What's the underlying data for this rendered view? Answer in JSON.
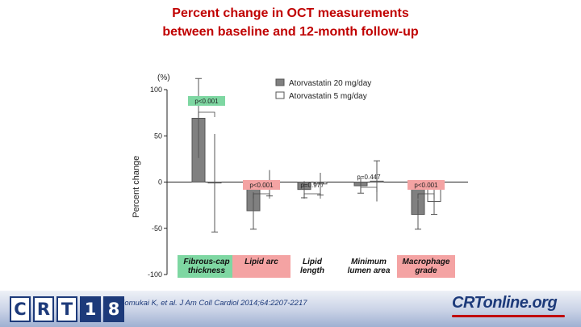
{
  "title": {
    "line1": "Percent change in OCT measurements",
    "line2": "between baseline and 12-month follow-up"
  },
  "chart_data": {
    "type": "bar",
    "ylabel": "Percent change",
    "yunit": "(%)",
    "ylim": [
      -100,
      100
    ],
    "yticks": [
      100,
      50,
      0,
      -50,
      -100
    ],
    "tick_labels": [
      "100",
      "50",
      "0",
      "-50",
      "-100"
    ],
    "categories": [
      {
        "label_lines": [
          "Fibrous-cap",
          "thickness"
        ],
        "bg": "#7ed7a2"
      },
      {
        "label_lines": [
          "Lipid arc"
        ],
        "bg": "#f4a3a3"
      },
      {
        "label_lines": [
          "Lipid",
          "length"
        ],
        "bg": ""
      },
      {
        "label_lines": [
          "Minimum",
          "lumen area"
        ],
        "bg": ""
      },
      {
        "label_lines": [
          "Macrophage",
          "grade"
        ],
        "bg": "#f4a3a3"
      }
    ],
    "series": [
      {
        "name": "Atorvastatin 20 mg/day",
        "color": "#808080",
        "values": [
          69,
          -31,
          -8,
          -4,
          -35
        ],
        "err_hi": [
          43,
          20,
          9,
          8,
          16
        ]
      },
      {
        "name": "Atorvastatin 5 mg/day",
        "color": "#ffffff",
        "values": [
          -1,
          -1,
          -2,
          1,
          -21
        ],
        "err_hi": [
          53,
          14,
          12,
          22,
          14
        ]
      }
    ],
    "pvalues": [
      {
        "text": "p<0.001",
        "bg": "#7ed7a2"
      },
      {
        "text": "p<0.001",
        "bg": "#f4a3a3"
      },
      {
        "text": "p=0.977",
        "bg": ""
      },
      {
        "text": "p=0.447",
        "bg": ""
      },
      {
        "text": "p<0.001",
        "bg": "#f4a3a3"
      }
    ],
    "legend_position": "top-right"
  },
  "footer": {
    "logo_letters": [
      "C",
      "R",
      "T",
      "1",
      "8"
    ],
    "citation": "Komukai K, et al. J Am Coll Cardiol 2014;64:2207-2217",
    "site_logo": "CRTonline.org"
  }
}
